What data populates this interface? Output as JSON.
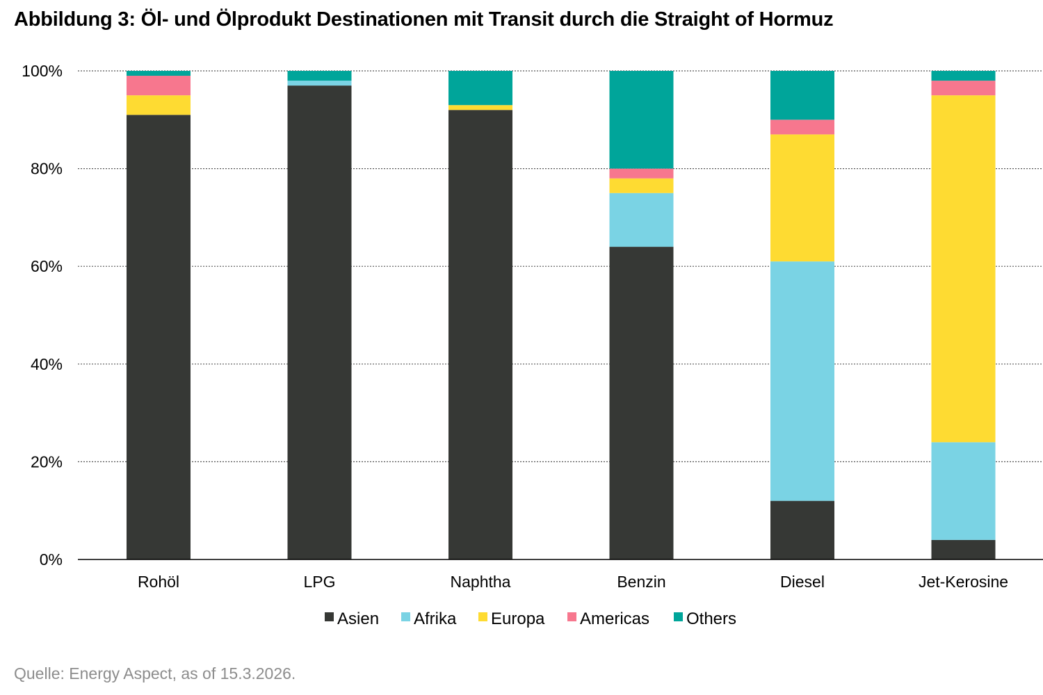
{
  "title": "Abbildung 3: Öl- und Ölprodukt Destinationen mit Transit durch die Straight of Hormuz",
  "source": "Quelle: Energy Aspect, as of 15.3.2026.",
  "chart_data": {
    "type": "bar",
    "stacked": true,
    "categories": [
      "Rohöl",
      "LPG",
      "Naphtha",
      "Benzin",
      "Diesel",
      "Jet-Kerosine"
    ],
    "series": [
      {
        "name": "Asien",
        "color": "#363835",
        "values": [
          91,
          97,
          92,
          64,
          12,
          4
        ]
      },
      {
        "name": "Afrika",
        "color": "#7ad3e4",
        "values": [
          0,
          1,
          0,
          11,
          49,
          20
        ]
      },
      {
        "name": "Europa",
        "color": "#fedb32",
        "values": [
          4,
          0,
          1,
          3,
          26,
          71
        ]
      },
      {
        "name": "Americas",
        "color": "#f7778e",
        "values": [
          4,
          0,
          0,
          2,
          3,
          3
        ]
      },
      {
        "name": "Others",
        "color": "#00a59a",
        "values": [
          1,
          2,
          7,
          20,
          10,
          2
        ]
      }
    ],
    "ylim": [
      0,
      100
    ],
    "yticks": [
      0,
      20,
      40,
      60,
      80,
      100
    ],
    "ytick_labels": [
      "0%",
      "20%",
      "40%",
      "60%",
      "80%",
      "100%"
    ],
    "grid": true,
    "legend_position": "bottom"
  }
}
